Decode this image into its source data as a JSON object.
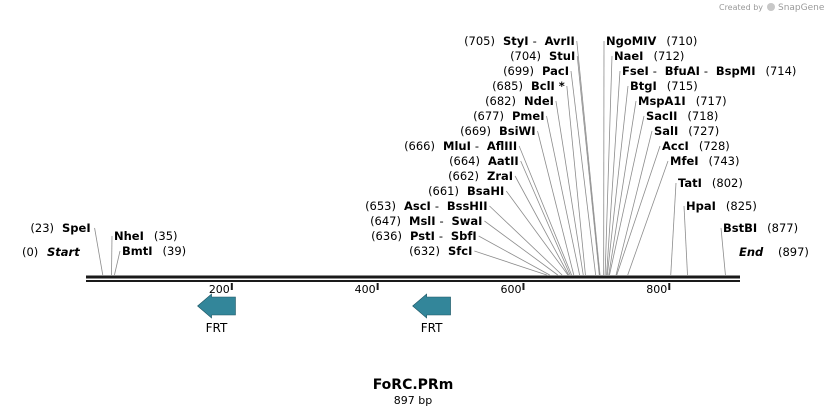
{
  "credit": {
    "text": "Created by",
    "brand": "SnapGene"
  },
  "map": {
    "name": "FoRC.PRm",
    "length_label": "897 bp",
    "length": 897
  },
  "axis": {
    "ticks": [
      {
        "value": 200,
        "label": "200"
      },
      {
        "value": 400,
        "label": "400"
      },
      {
        "value": 600,
        "label": "600"
      },
      {
        "value": 800,
        "label": "800"
      }
    ]
  },
  "features": [
    {
      "name": "FRT",
      "start": 153,
      "end": 205,
      "direction": "reverse",
      "color": "#33869a"
    },
    {
      "name": "FRT",
      "start": 448,
      "end": 500,
      "direction": "reverse",
      "color": "#33869a"
    }
  ],
  "ends": {
    "start": {
      "label": "Start",
      "pos": "(0)"
    },
    "end": {
      "label": "End",
      "pos": "(897)"
    }
  },
  "sites": [
    {
      "id": "spei",
      "pos": 23,
      "pos_label": "(23)",
      "names": [
        "SpeI"
      ]
    },
    {
      "id": "nhei",
      "pos": 35,
      "pos_label": "(35)",
      "names": [
        "NheI"
      ]
    },
    {
      "id": "bmti",
      "pos": 39,
      "pos_label": "(39)",
      "names": [
        "BmtI"
      ]
    },
    {
      "id": "sfci",
      "pos": 632,
      "pos_label": "(632)",
      "names": [
        "SfcI"
      ]
    },
    {
      "id": "psti",
      "pos": 636,
      "pos_label": "(636)",
      "names": [
        "PstI",
        "SbfI"
      ]
    },
    {
      "id": "msli",
      "pos": 647,
      "pos_label": "(647)",
      "names": [
        "MslI",
        "SwaI"
      ]
    },
    {
      "id": "asci",
      "pos": 653,
      "pos_label": "(653)",
      "names": [
        "AscI",
        "BssHII"
      ]
    },
    {
      "id": "bsahi",
      "pos": 661,
      "pos_label": "(661)",
      "names": [
        "BsaHI"
      ]
    },
    {
      "id": "zrai",
      "pos": 662,
      "pos_label": "(662)",
      "names": [
        "ZraI"
      ]
    },
    {
      "id": "aatii",
      "pos": 664,
      "pos_label": "(664)",
      "names": [
        "AatII"
      ]
    },
    {
      "id": "mlui",
      "pos": 666,
      "pos_label": "(666)",
      "names": [
        "MluI",
        "AflIII"
      ]
    },
    {
      "id": "bsiwi",
      "pos": 669,
      "pos_label": "(669)",
      "names": [
        "BsiWI"
      ]
    },
    {
      "id": "pmei",
      "pos": 677,
      "pos_label": "(677)",
      "names": [
        "PmeI"
      ]
    },
    {
      "id": "ndei",
      "pos": 682,
      "pos_label": "(682)",
      "names": [
        "NdeI"
      ]
    },
    {
      "id": "bcli",
      "pos": 685,
      "pos_label": "(685)",
      "names": [
        "BclI *"
      ]
    },
    {
      "id": "paci",
      "pos": 699,
      "pos_label": "(699)",
      "names": [
        "PacI"
      ]
    },
    {
      "id": "stui",
      "pos": 704,
      "pos_label": "(704)",
      "names": [
        "StuI"
      ]
    },
    {
      "id": "styi",
      "pos": 705,
      "pos_label": "(705)",
      "names": [
        "StyI",
        "AvrII"
      ]
    },
    {
      "id": "ngomiv",
      "pos": 710,
      "pos_label": "(710)",
      "names": [
        "NgoMIV"
      ]
    },
    {
      "id": "naei",
      "pos": 712,
      "pos_label": "(712)",
      "names": [
        "NaeI"
      ]
    },
    {
      "id": "fsei",
      "pos": 714,
      "pos_label": "(714)",
      "names": [
        "FseI",
        "BfuAI",
        "BspMI"
      ]
    },
    {
      "id": "btgi",
      "pos": 715,
      "pos_label": "(715)",
      "names": [
        "BtgI"
      ]
    },
    {
      "id": "mspa1i",
      "pos": 717,
      "pos_label": "(717)",
      "names": [
        "MspA1I"
      ]
    },
    {
      "id": "sacii",
      "pos": 718,
      "pos_label": "(718)",
      "names": [
        "SacII"
      ]
    },
    {
      "id": "sali",
      "pos": 727,
      "pos_label": "(727)",
      "names": [
        "SalI"
      ]
    },
    {
      "id": "acci",
      "pos": 728,
      "pos_label": "(728)",
      "names": [
        "AccI"
      ]
    },
    {
      "id": "mfei",
      "pos": 743,
      "pos_label": "(743)",
      "names": [
        "MfeI"
      ]
    },
    {
      "id": "tati",
      "pos": 802,
      "pos_label": "(802)",
      "names": [
        "TatI"
      ]
    },
    {
      "id": "hpai",
      "pos": 825,
      "pos_label": "(825)",
      "names": [
        "HpaI"
      ]
    },
    {
      "id": "bstbi",
      "pos": 877,
      "pos_label": "(877)",
      "names": [
        "BstBI"
      ]
    }
  ]
}
